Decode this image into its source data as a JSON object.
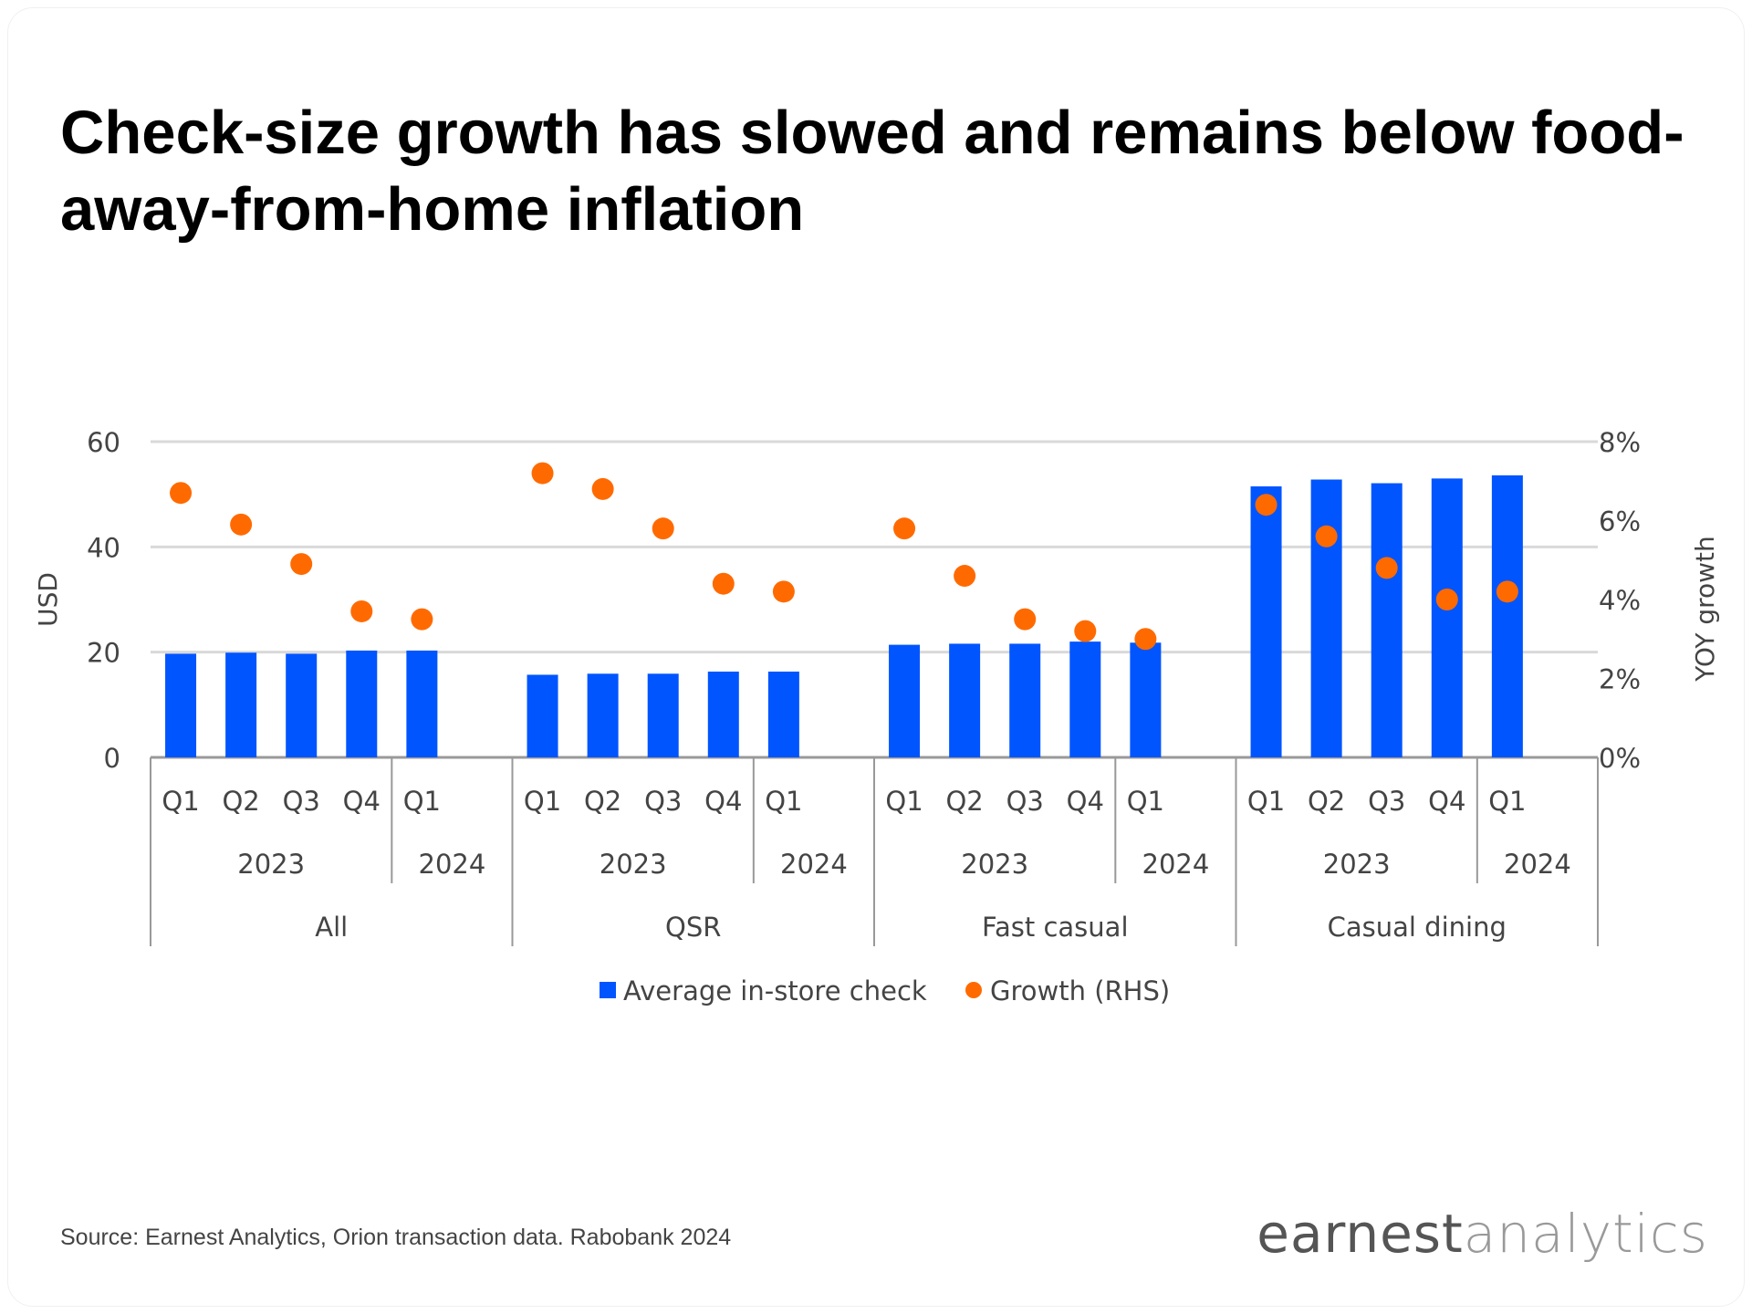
{
  "title": "Check-size growth has slowed and remains below food-away-from-home inflation",
  "source": "Source: Earnest Analytics, Orion transaction data. Rabobank 2024",
  "logo": {
    "part1": "earnest",
    "part2": "analytics"
  },
  "chart_data": {
    "type": "bar",
    "title": "Check-size growth has slowed and remains below food-away-from-home inflation",
    "ylabel": "USD",
    "y2label": "YOY growth",
    "ylim": [
      0,
      60
    ],
    "yticks": [
      "0",
      "20",
      "40",
      "60"
    ],
    "y2lim": [
      0,
      8
    ],
    "y2ticks": [
      "0%",
      "2%",
      "4%",
      "6%",
      "8%"
    ],
    "grid": true,
    "legend_position": "bottom",
    "colors": {
      "bars": "#0055FF",
      "dots": "#FF6A00"
    },
    "groups": [
      {
        "name": "All",
        "years": [
          {
            "label": "2023",
            "quarters": [
              "Q1",
              "Q2",
              "Q3",
              "Q4"
            ]
          },
          {
            "label": "2024",
            "quarters": [
              "Q1"
            ]
          }
        ]
      },
      {
        "name": "QSR",
        "years": [
          {
            "label": "2023",
            "quarters": [
              "Q1",
              "Q2",
              "Q3",
              "Q4"
            ]
          },
          {
            "label": "2024",
            "quarters": [
              "Q1"
            ]
          }
        ]
      },
      {
        "name": "Fast casual",
        "years": [
          {
            "label": "2023",
            "quarters": [
              "Q1",
              "Q2",
              "Q3",
              "Q4"
            ]
          },
          {
            "label": "2024",
            "quarters": [
              "Q1"
            ]
          }
        ]
      },
      {
        "name": "Casual dining",
        "years": [
          {
            "label": "2023",
            "quarters": [
              "Q1",
              "Q2",
              "Q3",
              "Q4"
            ]
          },
          {
            "label": "2024",
            "quarters": [
              "Q1"
            ]
          }
        ]
      }
    ],
    "series": [
      {
        "name": "Average in-store check",
        "type": "bar",
        "axis": "left",
        "values": [
          [
            19.7,
            19.9,
            19.7,
            20.3,
            20.3
          ],
          [
            15.7,
            15.9,
            15.9,
            16.3,
            16.3
          ],
          [
            21.4,
            21.6,
            21.6,
            22.0,
            21.8
          ],
          [
            51.5,
            52.8,
            52.1,
            53.0,
            53.6
          ]
        ]
      },
      {
        "name": "Growth (RHS)",
        "type": "scatter",
        "axis": "right",
        "values": [
          [
            6.7,
            5.9,
            4.9,
            3.7,
            3.5
          ],
          [
            7.2,
            6.8,
            5.8,
            4.4,
            4.2
          ],
          [
            5.8,
            4.6,
            3.5,
            3.2,
            3.0
          ],
          [
            6.4,
            5.6,
            4.8,
            4.0,
            4.2
          ]
        ]
      }
    ]
  }
}
